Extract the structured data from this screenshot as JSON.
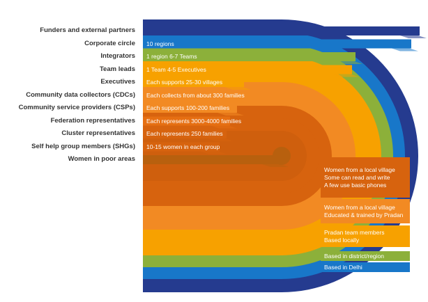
{
  "colors": {
    "navy": "#253b8f",
    "blue": "#1877c9",
    "green": "#8cb03a",
    "amber": "#f7a100",
    "orange": "#f28a23",
    "burnt": "#e66f12",
    "deep": "#d7630e",
    "brown": "#b8600e",
    "label": "#333333"
  },
  "rows": [
    {
      "label": "Funders and external partners",
      "text": "",
      "color": "navy"
    },
    {
      "label": "Corporate circle",
      "text": "10 regions",
      "color": "blue"
    },
    {
      "label": "Integrators",
      "text": "1 region 6-7 Teams",
      "color": "green"
    },
    {
      "label": "Team leads",
      "text": "1 Team 4-5 Executives",
      "color": "amber"
    },
    {
      "label": "Executives",
      "text": "Each supports 25-30 villages",
      "color": "amber"
    },
    {
      "label": "Community data collectors (CDCs)",
      "text": "Each collects from about 300 families",
      "color": "orange"
    },
    {
      "label": "Community service providers (CSPs)",
      "text": "Each supports 100-200 families",
      "color": "orange"
    },
    {
      "label": "Federation representatives",
      "text": "Each represents 3000-4000 families",
      "color": "burnt"
    },
    {
      "label": "Cluster representatives",
      "text": "Each represents 250 families",
      "color": "deep"
    },
    {
      "label": "Self help group members (SHGs)",
      "text": "10-15 women in each group",
      "color": "deep"
    },
    {
      "label": "Women in poor areas",
      "text": "",
      "color": "brown"
    }
  ],
  "right_boxes": [
    {
      "lines": [
        "Women from a local village",
        "Some can read and write",
        "A  few use basic phones"
      ],
      "color": "deep"
    },
    {
      "lines": [
        "Women from a local village",
        "Educated & trained by Pradan"
      ],
      "color": "orange"
    },
    {
      "lines": [
        "Pradan team members",
        "Based locally"
      ],
      "color": "amber"
    },
    {
      "lines": [
        "Based in district/region"
      ],
      "color": "green"
    },
    {
      "lines": [
        "Based in Delhi"
      ],
      "color": "blue"
    }
  ]
}
